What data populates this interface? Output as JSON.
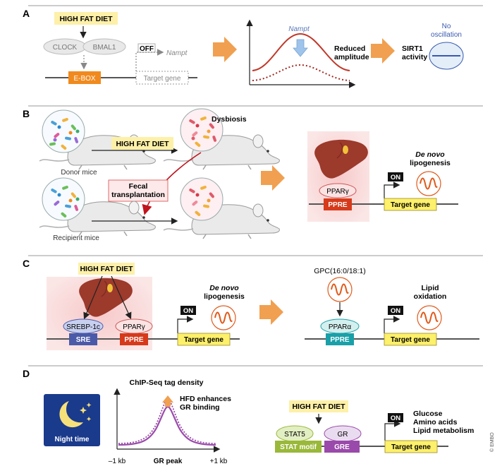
{
  "copyright": "© EMBO",
  "panel_a": {
    "letter": "A",
    "high_fat_diet": "HIGH FAT DIET",
    "clock": "CLOCK",
    "bmal1": "BMAL1",
    "off": "OFF",
    "nampt": "Nampt",
    "ebox": "E-BOX",
    "target_gene": "Target gene",
    "curve_label": "Nampt",
    "reduced_1": "Reduced",
    "reduced_2": "amplitude",
    "sirt1_1": "SIRT1",
    "sirt1_2": "activity",
    "no_osc_1": "No",
    "no_osc_2": "oscillation"
  },
  "panel_b": {
    "letter": "B",
    "dysbiosis": "Dysbiosis",
    "high_fat_diet": "HIGH FAT DIET",
    "donor": "Donor mice",
    "fecal_1": "Fecal",
    "fecal_2": "transplantation",
    "recipient": "Recipient mice",
    "denovo_1": "De novo",
    "denovo_2": "lipogenesis",
    "on": "ON",
    "ppar": "PPARγ",
    "ppre": "PPRE",
    "target_gene": "Target gene"
  },
  "panel_c": {
    "letter": "C",
    "high_fat_diet": "HIGH FAT DIET",
    "srebp": "SREBP-1c",
    "pparg": "PPARγ",
    "sre": "SRE",
    "ppre": "PPRE",
    "on": "ON",
    "denovo_1": "De novo",
    "denovo_2": "lipogenesis",
    "target_gene": "Target gene",
    "gpc": "GPC(16:0/18:1)",
    "ppara": "PPARα",
    "ppre2": "PPRE",
    "on2": "ON",
    "lipid_1": "Lipid",
    "lipid_2": "oxidation",
    "target_gene2": "Target gene"
  },
  "panel_d": {
    "letter": "D",
    "night": "Night time",
    "chip_title": "ChIP-Seq tag density",
    "hfd_1": "HFD enhances",
    "hfd_2": "GR binding",
    "x_left": "–1 kb",
    "x_mid": "GR peak",
    "x_right": "+1 kb",
    "high_fat_diet": "HIGH FAT DIET",
    "stat5": "STAT5",
    "gr": "GR",
    "stat_motif": "STAT motif",
    "gre": "GRE",
    "on": "ON",
    "target_gene": "Target gene",
    "out_1": "Glucose",
    "out_2": "Amino acids",
    "out_3": "Lipid metabolism"
  },
  "colors": {
    "hfd_fill": "#fdf0a8",
    "orange": "#f0a050",
    "ebox": "#f08a1e",
    "ppre": "#d63a1a",
    "liver": "#9c3a2c",
    "target_gene": "#fdf06a",
    "sre": "#4a5aa8",
    "ppre_teal": "#1aa0a8",
    "purple": "#9a4aaa",
    "stat_motif": "#9ab83a",
    "night": "#1a3a8c"
  }
}
